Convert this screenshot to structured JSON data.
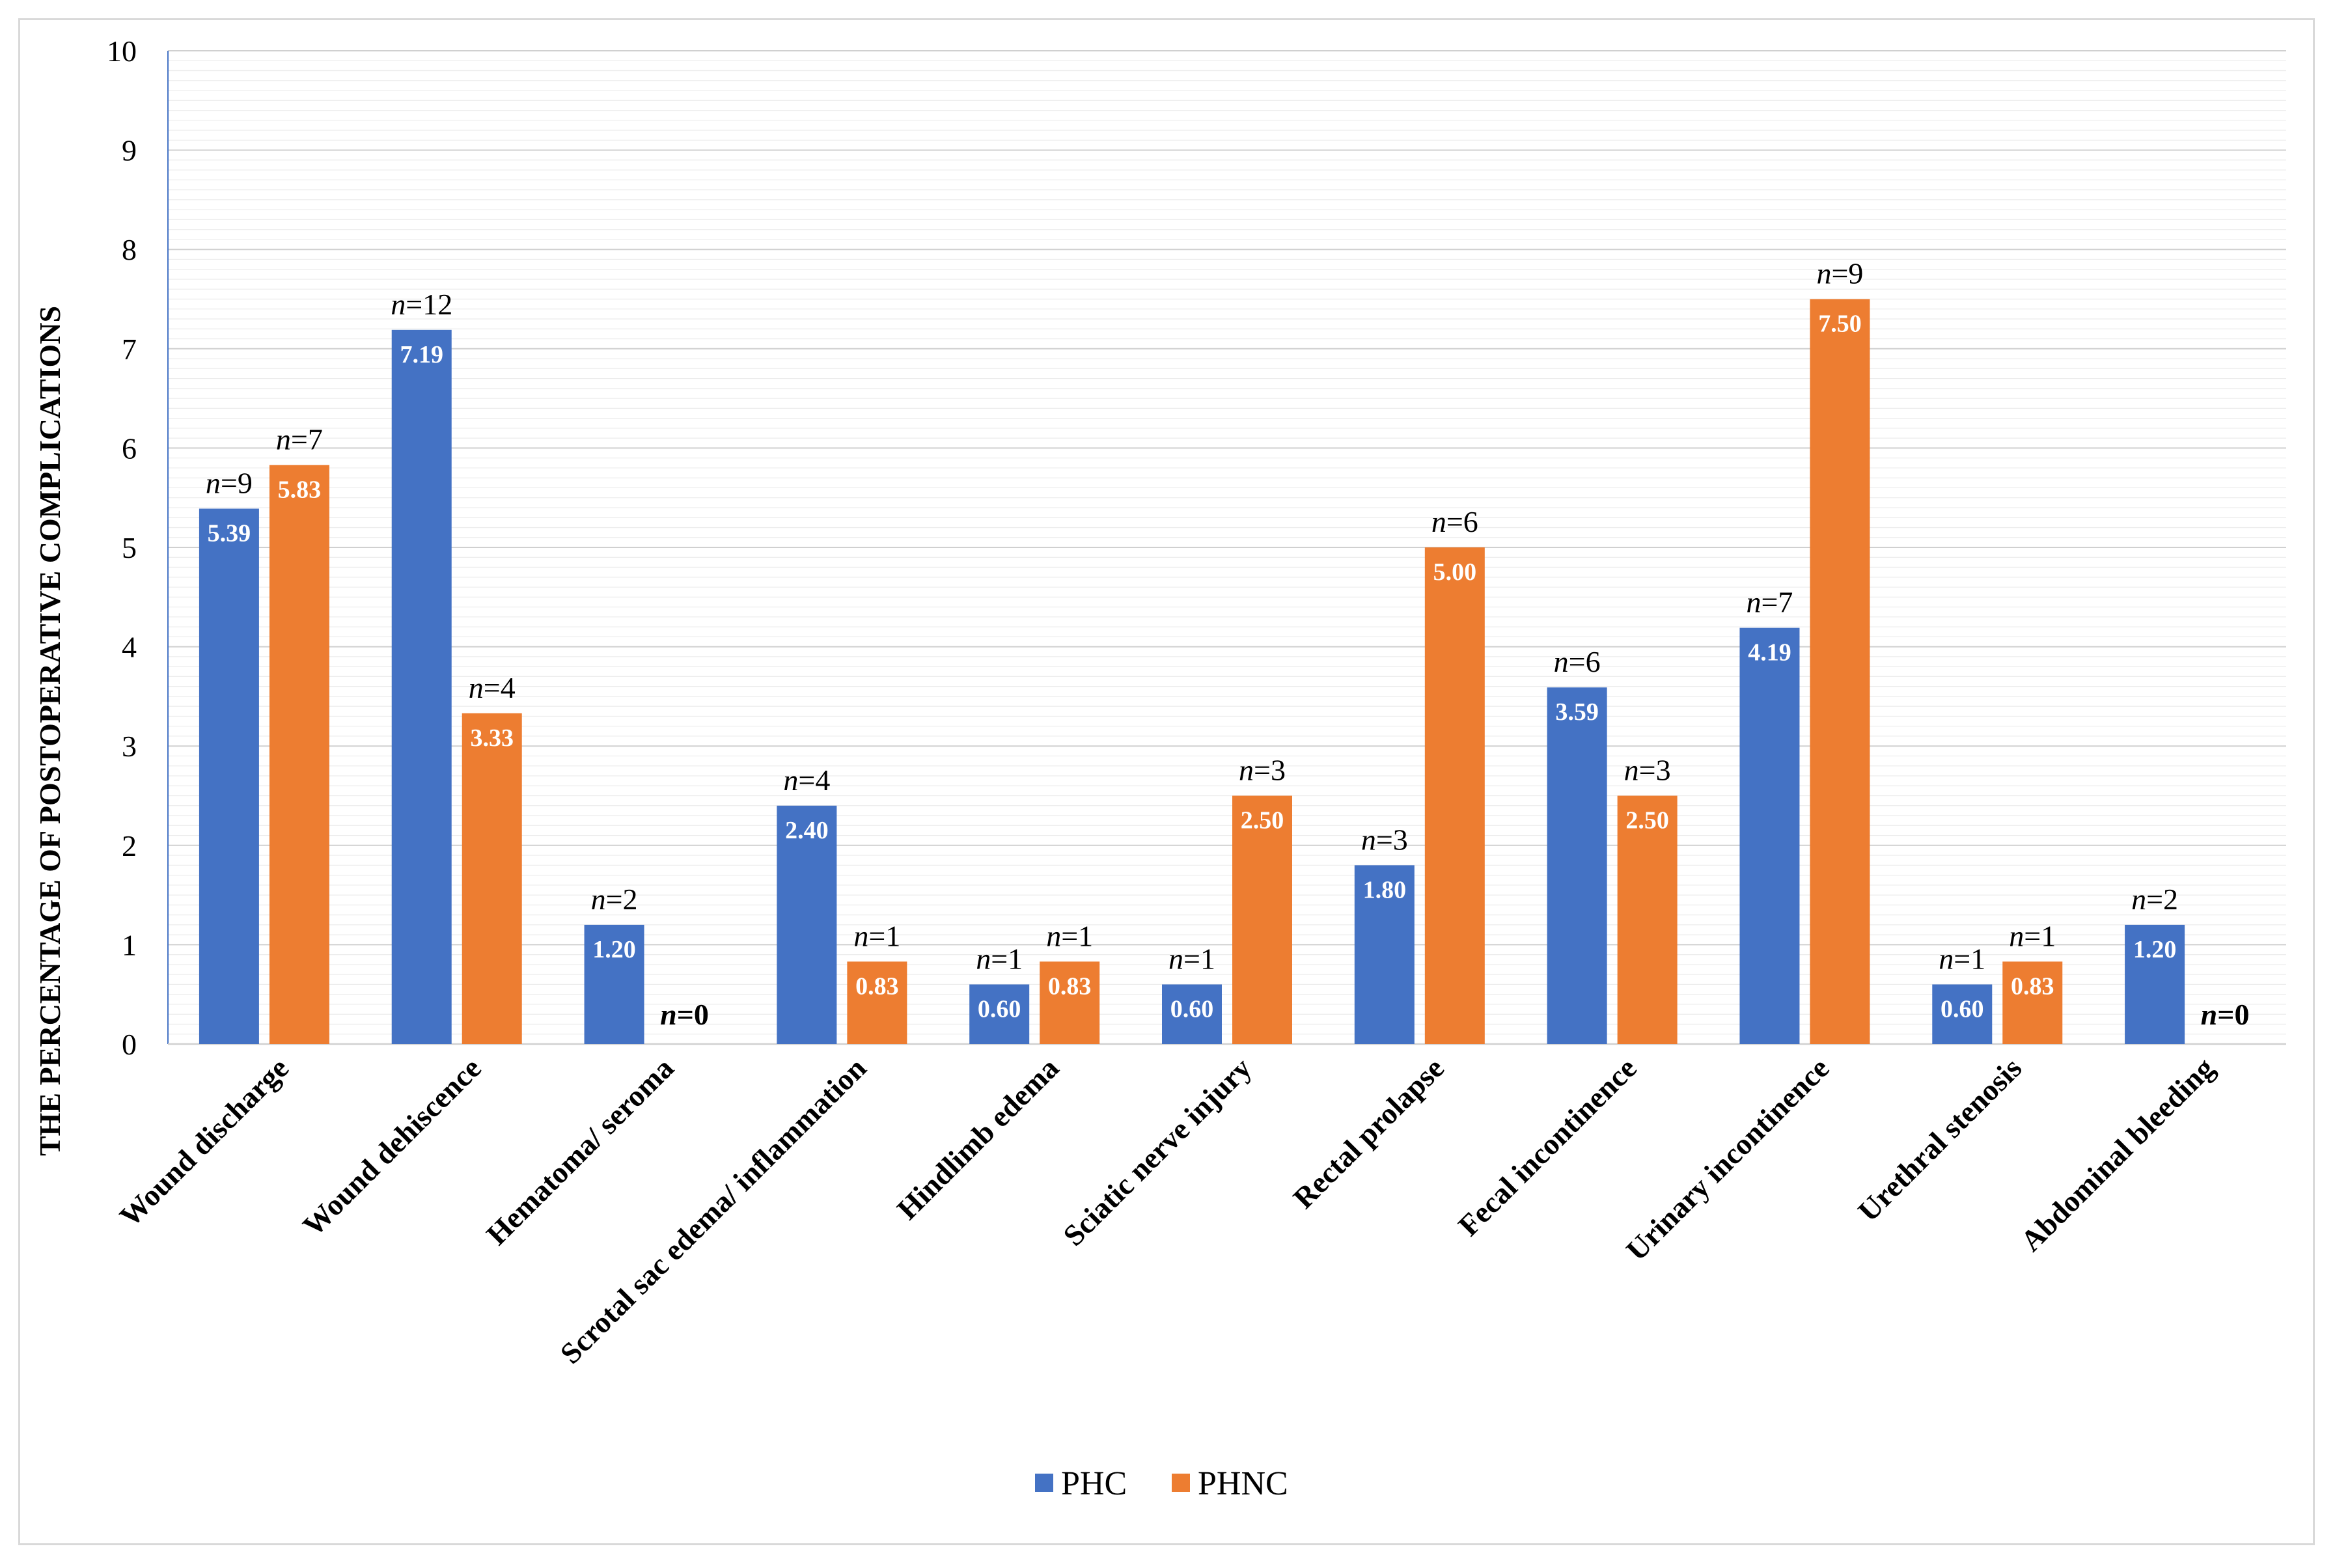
{
  "chart_data": {
    "type": "bar",
    "title": "",
    "xlabel": "",
    "ylabel": "THE PERCENTAGE OF POSTOPERATIVE COMPLICATIONS",
    "ylim": [
      0,
      10
    ],
    "yticks": [
      0,
      1,
      2,
      3,
      4,
      5,
      6,
      7,
      8,
      9,
      10
    ],
    "grid": true,
    "legend_position": "bottom",
    "categories": [
      "Wound discharge",
      "Wound dehiscence",
      "Hematoma/ seroma",
      "Scrotal sac edema/ inflammation",
      "Hindlimb edema",
      "Sciatic nerve injury",
      "Rectal prolapse",
      "Fecal incontinence",
      "Urinary incontinence",
      "Urethral stenosis",
      "Abdominal bleeding"
    ],
    "series": [
      {
        "name": "PHC",
        "color": "#4472c4",
        "values": [
          5.39,
          7.19,
          1.2,
          2.4,
          0.6,
          0.6,
          1.8,
          3.59,
          4.19,
          0.6,
          1.2
        ],
        "value_labels": [
          "5.39",
          "7.19",
          "1.20",
          "2.40",
          "0.60",
          "0.60",
          "1.80",
          "3.59",
          "4.19",
          "0.60",
          "1.20"
        ],
        "n_labels": [
          "9",
          "12",
          "2",
          "4",
          "1",
          "1",
          "3",
          "6",
          "7",
          "1",
          "2"
        ]
      },
      {
        "name": "PHNC",
        "color": "#ed7d31",
        "values": [
          5.83,
          3.33,
          0,
          0.83,
          0.83,
          2.5,
          5.0,
          2.5,
          7.5,
          0.83,
          0
        ],
        "value_labels": [
          "5.83",
          "3.33",
          "",
          "0.83",
          "0.83",
          "2.50",
          "5.00",
          "2.50",
          "7.50",
          "0.83",
          ""
        ],
        "n_labels": [
          "7",
          "4",
          "0",
          "1",
          "1",
          "3",
          "6",
          "3",
          "9",
          "1",
          "0"
        ]
      }
    ]
  }
}
